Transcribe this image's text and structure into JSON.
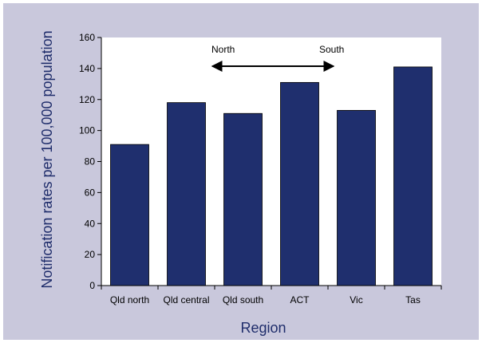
{
  "chart_data": {
    "type": "bar",
    "title": "",
    "xlabel": "Region",
    "ylabel": "Notification rates per 100,000 population",
    "categories": [
      "Qld north",
      "Qld central",
      "Qld south",
      "ACT",
      "Vic",
      "Tas"
    ],
    "values": [
      91,
      118,
      111,
      131,
      113,
      141
    ],
    "ylim": [
      0,
      160
    ],
    "yticks": [
      0,
      20,
      40,
      60,
      80,
      100,
      120,
      140,
      160
    ],
    "grid": false,
    "legend": "none",
    "annotations": [
      {
        "label": "North",
        "points_from": "Qld south",
        "points_to": "ACT"
      },
      {
        "label": "South"
      }
    ],
    "colors": {
      "bar": "#1f2f6e",
      "background": "#c9c8dc",
      "plot_background": "#ffffff",
      "axis_title": "#1f2d6b"
    }
  }
}
